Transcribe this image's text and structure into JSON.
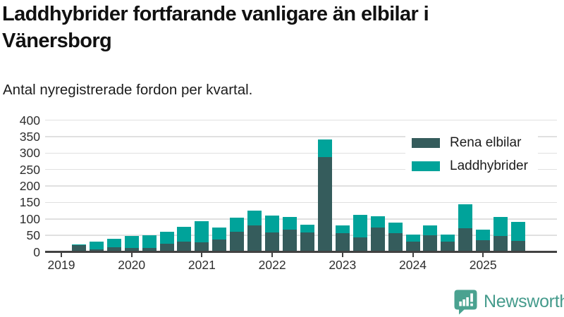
{
  "title": "Laddhybrider fortfarande vanligare än elbilar i\nVänersborg",
  "subtitle": "Antal nyregistrerade fordon per kvartal.",
  "colors": {
    "series_dark": "#355c5c",
    "series_teal": "#00a39a",
    "grid": "#e0e0e0",
    "axis": "#424242",
    "text": "#111111",
    "brand": "#459b8c"
  },
  "branding": {
    "wordmark": "Newsworthy",
    "color": "#459b8c",
    "icon_color": "#4aa290",
    "icon": "newsworthy-speech-bubble-chart-icon"
  },
  "chart_data": {
    "type": "bar",
    "stacked": true,
    "title": "Laddhybrider fortfarande vanligare än elbilar i Vänersborg",
    "subtitle": "Antal nyregistrerade fordon per kvartal.",
    "xlabel": "",
    "ylabel": "",
    "categories": [
      "2019 Q2",
      "2019 Q3",
      "2019 Q4",
      "2020 Q1",
      "2020 Q2",
      "2020 Q3",
      "2020 Q4",
      "2021 Q1",
      "2021 Q2",
      "2021 Q3",
      "2021 Q4",
      "2022 Q1",
      "2022 Q2",
      "2022 Q3",
      "2022 Q4",
      "2023 Q1",
      "2023 Q2",
      "2023 Q3",
      "2023 Q4",
      "2024 Q1",
      "2024 Q2",
      "2024 Q3",
      "2024 Q4",
      "2025 Q1",
      "2025 Q2",
      "2025 Q3"
    ],
    "series": [
      {
        "name": "Rena elbilar",
        "color": "#355c5c",
        "values": [
          20,
          8,
          13,
          11,
          12,
          24,
          30,
          29,
          38,
          60,
          81,
          58,
          67,
          58,
          287,
          57,
          44,
          73,
          57,
          32,
          51,
          31,
          71,
          35,
          48,
          33
        ]
      },
      {
        "name": "Laddhybrider",
        "color": "#00a39a",
        "values": [
          2,
          22,
          27,
          37,
          39,
          38,
          46,
          63,
          35,
          44,
          45,
          52,
          38,
          25,
          55,
          23,
          68,
          35,
          32,
          21,
          30,
          21,
          73,
          33,
          58,
          57
        ]
      }
    ],
    "x_tick_labels": [
      "2019",
      "2020",
      "2021",
      "2022",
      "2023",
      "2024",
      "2025"
    ],
    "y_ticks": [
      0,
      50,
      100,
      150,
      200,
      250,
      300,
      350,
      400
    ],
    "ylim": [
      0,
      400
    ],
    "grid": "horizontal-only",
    "legend_position": "top-right"
  }
}
